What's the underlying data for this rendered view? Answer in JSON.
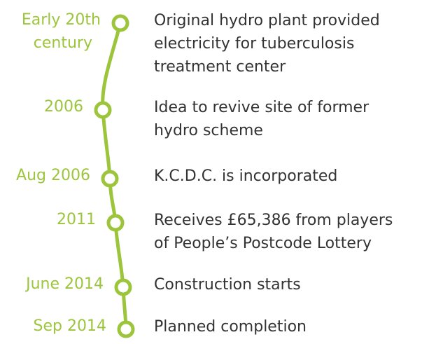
{
  "events": [
    {
      "date": [
        "Early 20th",
        "century"
      ],
      "description": [
        "Original hydro plant provided",
        "electricity for tuberculosis",
        "treatment center"
      ]
    },
    {
      "date": [
        "2006"
      ],
      "description": [
        "Idea to revive site of former",
        "hydro scheme"
      ]
    },
    {
      "date": [
        "Aug 2006"
      ],
      "description": [
        "K.C.D.C. is incorporated"
      ]
    },
    {
      "date": [
        "2011"
      ],
      "description": [
        "Receives £65,386 from players",
        "of People’s Postcode Lottery"
      ]
    },
    {
      "date": [
        "June 2014"
      ],
      "description": [
        "Construction starts"
      ]
    },
    {
      "date": [
        "Sep 2014"
      ],
      "description": [
        "Planned completion"
      ]
    }
  ]
}
